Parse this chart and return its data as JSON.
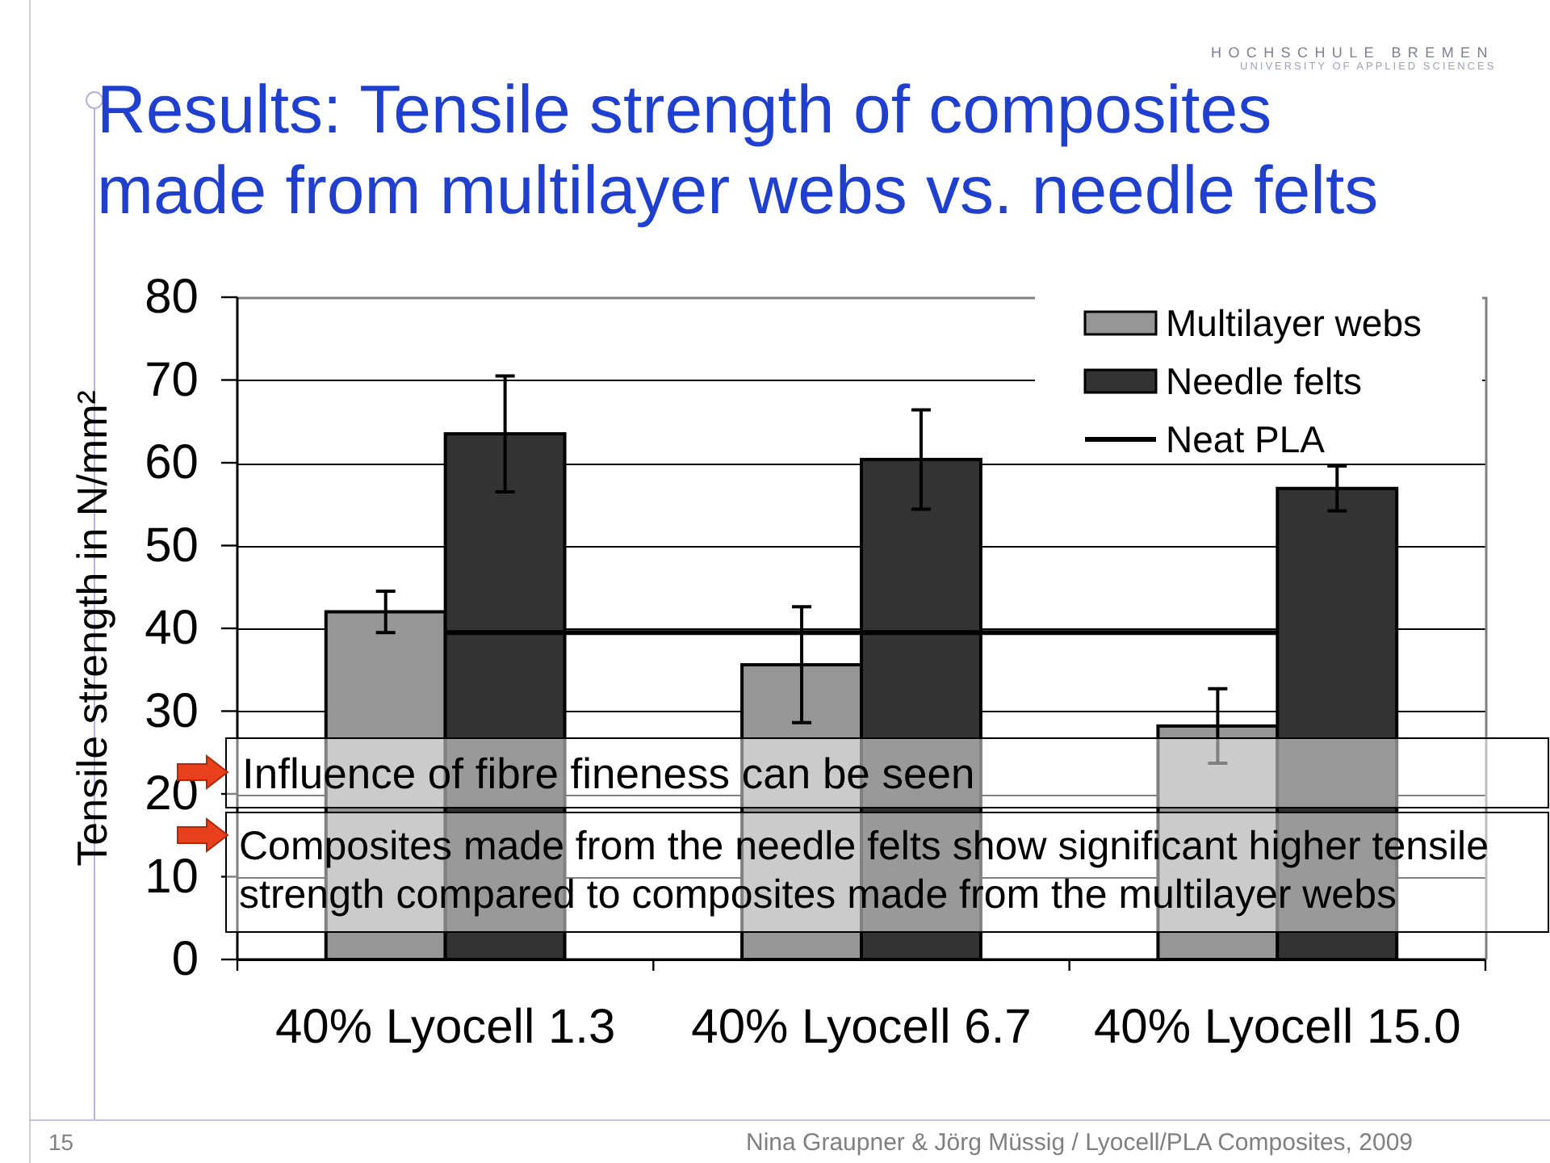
{
  "chart_data": {
    "type": "bar",
    "title": "Results: Tensile strength of composites made from multilayer webs vs. needle felts",
    "ylabel": "Tensile strength in N/mm²",
    "categories": [
      "40% Lyocell 1.3",
      "40% Lyocell 6.7",
      "40% Lyocell 15.0"
    ],
    "series": [
      {
        "name": "Multilayer webs",
        "color": "#969696",
        "values": [
          42,
          35.6,
          28.2
        ],
        "errors": [
          2.5,
          7,
          4.5
        ]
      },
      {
        "name": "Needle felts",
        "color": "#333333",
        "values": [
          63.5,
          60.4,
          56.9
        ],
        "errors": [
          7,
          6,
          2.7
        ]
      },
      {
        "name": "Neat PLA",
        "type": "line",
        "color": "#000000",
        "values": [
          39.5,
          39.5,
          39.5
        ]
      }
    ],
    "ylim": [
      0,
      80
    ],
    "yticks": [
      0,
      10,
      20,
      30,
      40,
      50,
      60,
      70,
      80
    ],
    "grid": "y",
    "legend": "top right",
    "annotations": [
      "HOCHSCHULE BREMEN",
      "UNIVERSITY OF APPLIED SCIENCES",
      "Influence of fibre fineness can be seen",
      "Composites made from the needle felts show significant higher tensile strength compared to composites made from the multilayer webs",
      "15",
      "Nina Graupner & Jörg Müssig / Lyocell/PLA Composites, 2009"
    ]
  }
}
